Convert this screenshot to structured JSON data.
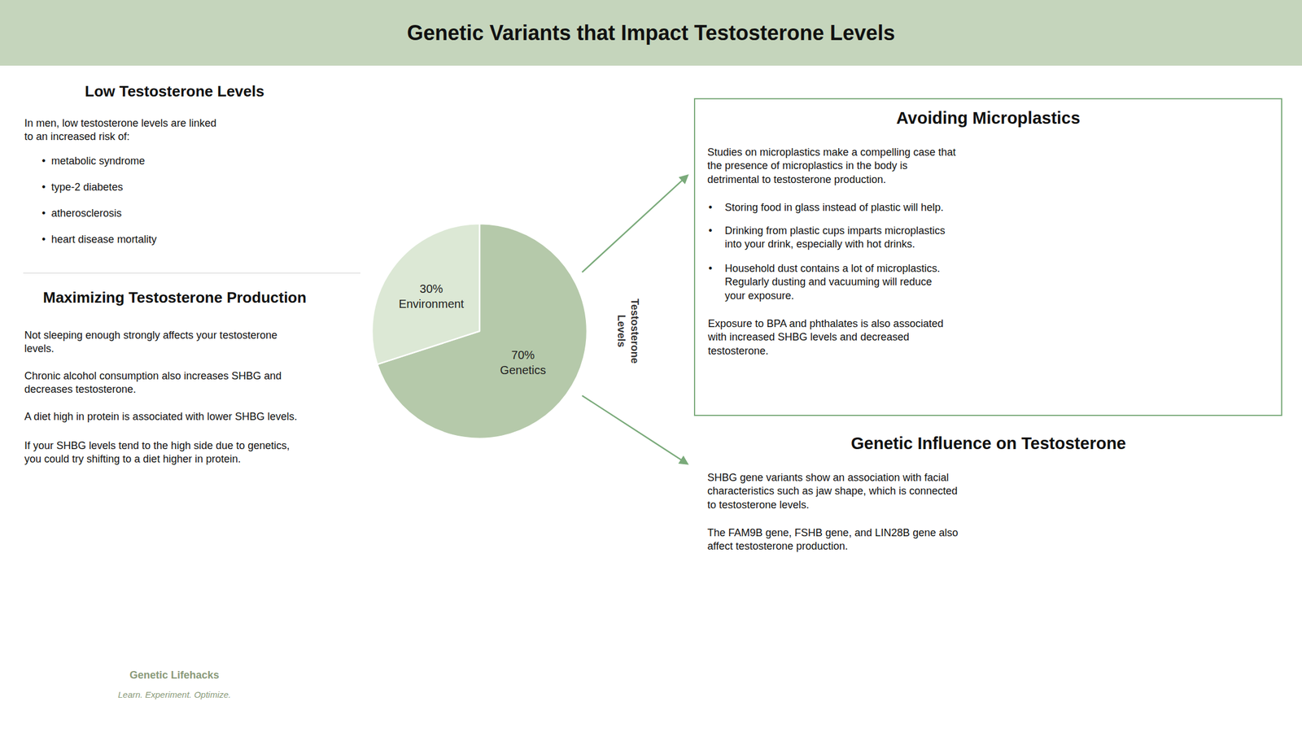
{
  "chart_data": {
    "type": "pie",
    "title": "Genetic Variants that Impact Testosterone Levels",
    "categories": [
      "Genetics",
      "Environment"
    ],
    "values": [
      70,
      30
    ],
    "value_labels": [
      "70%",
      "30%"
    ],
    "colors": [
      "#b5c9aa",
      "#dce8d5"
    ],
    "data_labels": true,
    "annotations": [
      "Low Testosterone Levels",
      "In men, low testosterone levels are linked\nto an increased risk of:",
      "•  metabolic syndrome",
      "•  type-2 diabetes",
      "•  atherosclerosis",
      "•  heart disease mortality",
      "Maximizing Testosterone Production",
      "Not sleeping enough strongly affects your testosterone\nlevels.",
      "Chronic alcohol consumption also increases SHBG and\ndecreases testosterone.",
      "A diet high in protein is associated with lower SHBG levels.",
      "If your SHBG levels tend to the high side due to genetics,\nyou could try shifting to a diet higher in protein.",
      "Genetic Lifehacks",
      "Learn. Experiment. Optimize.",
      "Testosterone\nLevels",
      "Avoiding Microplastics",
      "Studies on microplastics make a compelling case that\nthe presence of microplastics in the body is\ndetrimental to testosterone production.",
      "•",
      "Storing food in glass instead of plastic will help.",
      "•",
      "Drinking from plastic cups imparts microplastics\ninto your drink, especially with hot drinks.",
      "•",
      "Household dust contains a lot of microplastics.\nRegularly dusting and vacuuming will reduce\nyour exposure.",
      "Exposure to BPA and phthalates is also associated\nwith increased SHBG levels and decreased\ntestosterone.",
      "Genetic Influence on Testosterone",
      "SHBG gene variants show an association with facial\ncharacteristics such as jaw shape, which is connected\nto testosterone levels.",
      "The FAM9B gene, FSHB gene, and LIN28B gene also\naffect testosterone production."
    ]
  }
}
